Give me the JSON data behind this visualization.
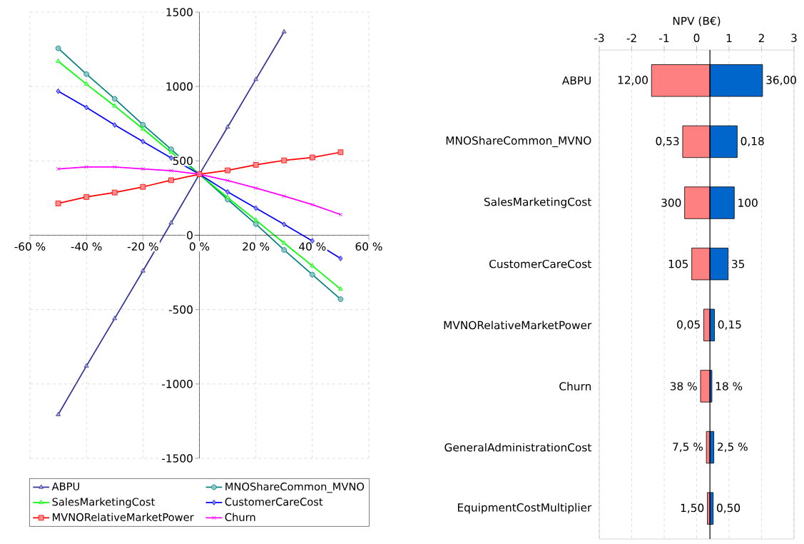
{
  "chart_data": [
    {
      "type": "line",
      "x": [
        -50,
        -40,
        -30,
        -20,
        -10,
        0,
        10,
        20,
        30,
        40,
        50
      ],
      "xlim": [
        -60,
        60
      ],
      "xticks": [
        {
          "value": -60,
          "label": "-60 %"
        },
        {
          "value": -40,
          "label": "-40 %"
        },
        {
          "value": -20,
          "label": "-20 %"
        },
        {
          "value": 0,
          "label": "0 %"
        },
        {
          "value": 20,
          "label": "20 %"
        },
        {
          "value": 40,
          "label": "40 %"
        },
        {
          "value": 60,
          "label": "60 %"
        }
      ],
      "ylim": [
        -1500,
        1500
      ],
      "yticks": [
        -1500,
        -1000,
        -500,
        0,
        500,
        1000,
        1500
      ],
      "grid": true,
      "legend": "bottom",
      "series": [
        {
          "name": "ABPU",
          "color": "#333399",
          "marker": "triangle",
          "values": [
            -1206,
            -879,
            -560,
            -240,
            83,
            410,
            727,
            1048,
            1368,
            null,
            null
          ]
        },
        {
          "name": "MNOShareCommon_MVNO",
          "color": "#008080",
          "marker": "circle",
          "values": [
            1257,
            1083,
            917,
            743,
            578,
            410,
            240,
            75,
            -99,
            -265,
            -430
          ]
        },
        {
          "name": "SalesMarketingCost",
          "color": "#00ff00",
          "marker": "triangle",
          "values": [
            1170,
            1016,
            869,
            715,
            558,
            410,
            253,
            101,
            -53,
            -206,
            -362
          ]
        },
        {
          "name": "CustomerCareCost",
          "color": "#0000ff",
          "marker": "diamond",
          "values": [
            968,
            859,
            741,
            630,
            519,
            410,
            291,
            182,
            73,
            -38,
            -156
          ]
        },
        {
          "name": "MVNORelativeMarketPower",
          "color": "#ff0000",
          "marker": "square",
          "values": [
            214,
            257,
            287,
            325,
            370,
            410,
            436,
            473,
            503,
            523,
            558
          ]
        },
        {
          "name": "Churn",
          "color": "#ff00ff",
          "marker": "cross",
          "values": [
            446,
            459,
            459,
            446,
            434,
            410,
            368,
            317,
            263,
            206,
            139
          ]
        }
      ]
    },
    {
      "type": "bar",
      "orientation": "horizontal",
      "xlabel": "NPV (B€)",
      "categories": [
        "ABPU",
        "MNOShareCommon_MVNO",
        "SalesMarketingCost",
        "CustomerCareCost",
        "MVNORelativeMarketPower",
        "Churn",
        "GeneralAdministrationCost",
        "EquipmentCostMultiplier"
      ],
      "xlim": [
        -3,
        3
      ],
      "xticks": [
        -3,
        -2,
        -1,
        0,
        1,
        2,
        3
      ],
      "grid": "x",
      "series": [
        {
          "color": "#ff8080",
          "base": [
            0.41,
            0.41,
            0.41,
            0.41,
            0.41,
            0.41,
            0.41,
            0.41
          ],
          "values": [
            -1.8,
            -0.84,
            -0.78,
            -0.56,
            -0.19,
            -0.29,
            -0.11,
            -0.08
          ]
        },
        {
          "color": "#0066cc",
          "base": [
            0.41,
            0.41,
            0.41,
            0.41,
            0.41,
            0.41,
            0.41,
            0.41
          ],
          "values": [
            1.62,
            0.84,
            0.75,
            0.56,
            0.14,
            0.06,
            0.12,
            0.1
          ]
        }
      ],
      "annotations": [
        {
          "text": "12,00",
          "x": -1.39,
          "y": "ABPU"
        },
        {
          "text": "0,53",
          "x": -0.43,
          "y": "MNOShareCommon_MVNO"
        },
        {
          "text": "300",
          "x": -0.37,
          "y": "SalesMarketingCost"
        },
        {
          "text": "105",
          "x": -0.15,
          "y": "CustomerCareCost"
        },
        {
          "text": "0,05",
          "x": 0.22,
          "y": "MVNORelativeMarketPower"
        },
        {
          "text": "38 %",
          "x": 0.12,
          "y": "Churn"
        },
        {
          "text": "7,5 %",
          "x": 0.3,
          "y": "GeneralAdministrationCost"
        },
        {
          "text": "1,50",
          "x": 0.33,
          "y": "EquipmentCostMultiplier"
        },
        {
          "text": "36,00",
          "x": 2.03,
          "y": "ABPU"
        },
        {
          "text": "0,18",
          "x": 1.25,
          "y": "MNOShareCommon_MVNO"
        },
        {
          "text": "100",
          "x": 1.16,
          "y": "SalesMarketingCost"
        },
        {
          "text": "35",
          "x": 0.97,
          "y": "CustomerCareCost"
        },
        {
          "text": "0,15",
          "x": 0.55,
          "y": "MVNORelativeMarketPower"
        },
        {
          "text": "18 %",
          "x": 0.47,
          "y": "Churn"
        },
        {
          "text": "2,5 %",
          "x": 0.53,
          "y": "GeneralAdministrationCost"
        },
        {
          "text": "0,50",
          "x": 0.51,
          "y": "EquipmentCostMultiplier"
        }
      ],
      "ref_lines": [
        {
          "axis": "x",
          "value": 0.41,
          "color": "#000000"
        }
      ]
    }
  ]
}
